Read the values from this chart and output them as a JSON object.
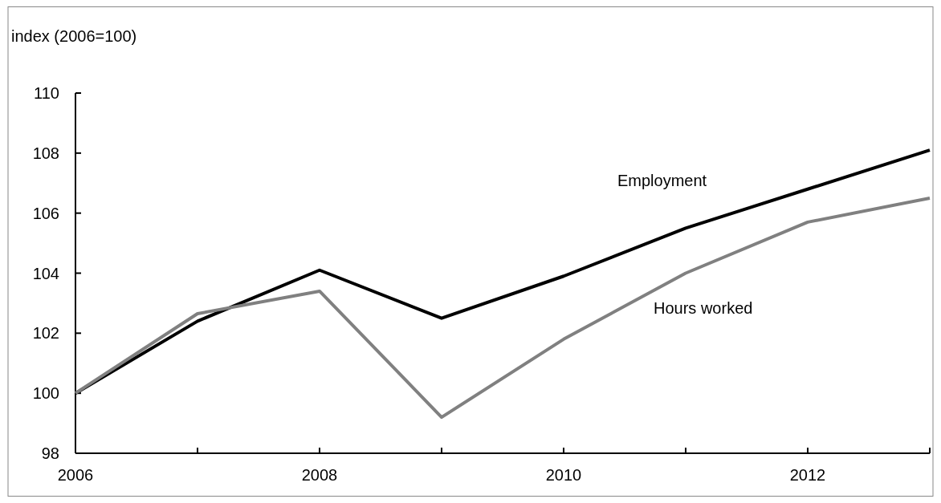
{
  "chart_data": {
    "type": "line",
    "ylabel": "index (2006=100)",
    "x": [
      2006,
      2007,
      2008,
      2009,
      2010,
      2011,
      2012,
      2013
    ],
    "xlim": [
      2006,
      2013
    ],
    "xticks": [
      2006,
      {
        "value": 2007,
        "label": null
      },
      2008,
      {
        "value": 2009,
        "label": null
      },
      2010,
      {
        "value": 2011,
        "label": null
      },
      2012,
      {
        "value": 2013,
        "label": null
      }
    ],
    "ylim": [
      98,
      110
    ],
    "yticks": [
      98,
      100,
      102,
      104,
      106,
      108,
      110
    ],
    "series": [
      {
        "name": "Employment",
        "color": "#000000",
        "values": [
          100,
          102.4,
          104.1,
          102.5,
          103.9,
          105.5,
          106.8,
          108.1
        ]
      },
      {
        "name": "Hours worked",
        "color": "#808080",
        "values": [
          100,
          102.65,
          103.4,
          99.2,
          101.8,
          104.0,
          105.7,
          106.5
        ]
      }
    ],
    "grid": false,
    "legend": false,
    "marker": "none",
    "line_style": "solid"
  }
}
